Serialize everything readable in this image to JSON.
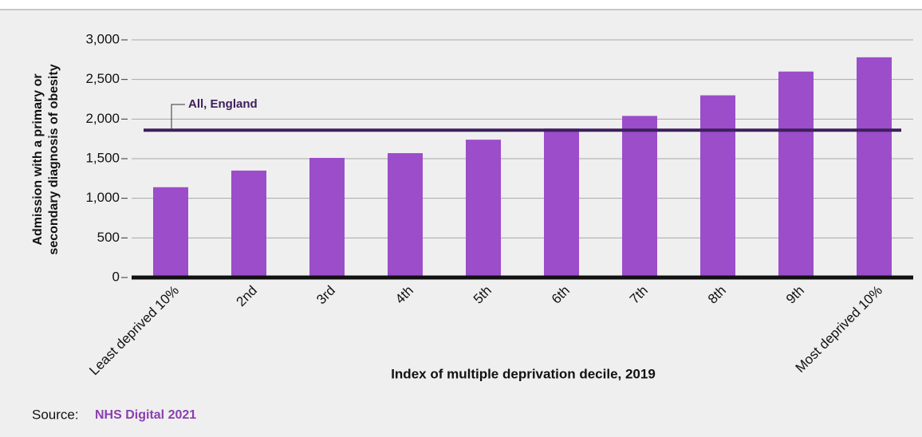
{
  "chart_data": {
    "type": "bar",
    "categories": [
      "Least deprived 10%",
      "2nd",
      "3rd",
      "4th",
      "5th",
      "6th",
      "7th",
      "8th",
      "9th",
      "Most deprived 10%"
    ],
    "values": [
      1140,
      1350,
      1510,
      1570,
      1740,
      1880,
      2040,
      2300,
      2600,
      2780
    ],
    "color": "#9b4dca",
    "ylim": [
      0,
      3000
    ],
    "yticks": [
      0,
      {
        "value": 500,
        "label": "500"
      },
      {
        "value": 1000,
        "label": "1,000"
      },
      {
        "value": 1500,
        "label": "1,500"
      },
      {
        "value": 2000,
        "label": "2,000"
      },
      {
        "value": 2500,
        "label": "2,500"
      },
      {
        "value": 3000,
        "label": "3,000"
      }
    ],
    "grid": true,
    "y_label": [
      "Admission with a primary or",
      "secondary diagnosis of obesity"
    ],
    "x_label": "Index of multiple deprivation decile, 2019",
    "reference": {
      "label": "All, England",
      "value": 1860,
      "color": "#3d1f5c"
    },
    "source_label": "Source:",
    "source": "NHS Digital 2021"
  }
}
